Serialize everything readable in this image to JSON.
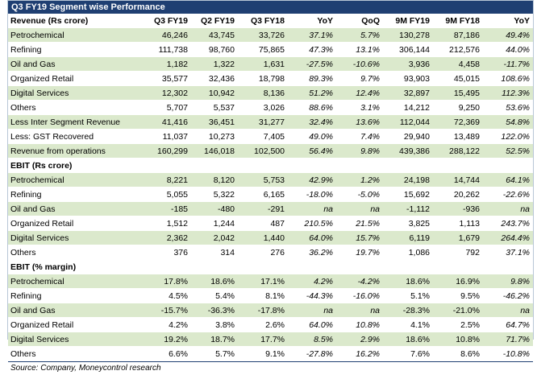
{
  "title": "Q3 FY19 Segment wise Performance",
  "columns": [
    "Q3 FY19",
    "Q2 FY19",
    "Q3 FY18",
    "YoY",
    "QoQ",
    "9M FY19",
    "9M FY18",
    "YoY"
  ],
  "sections": [
    {
      "heading": "Revenue (Rs crore)",
      "rows": [
        {
          "label": "Petrochemical",
          "values": [
            "46,246",
            "43,745",
            "33,726",
            "37.1%",
            "5.7%",
            "130,278",
            "87,186",
            "49.4%"
          ]
        },
        {
          "label": "Refining",
          "values": [
            "111,738",
            "98,760",
            "75,865",
            "47.3%",
            "13.1%",
            "306,144",
            "212,576",
            "44.0%"
          ]
        },
        {
          "label": "Oil and Gas",
          "values": [
            "1,182",
            "1,322",
            "1,631",
            "-27.5%",
            "-10.6%",
            "3,936",
            "4,458",
            "-11.7%"
          ]
        },
        {
          "label": "Organized Retail",
          "values": [
            "35,577",
            "32,436",
            "18,798",
            "89.3%",
            "9.7%",
            "93,903",
            "45,015",
            "108.6%"
          ]
        },
        {
          "label": "Digital Services",
          "values": [
            "12,302",
            "10,942",
            "8,136",
            "51.2%",
            "12.4%",
            "32,897",
            "15,495",
            "112.3%"
          ]
        },
        {
          "label": "Others",
          "values": [
            "5,707",
            "5,537",
            "3,026",
            "88.6%",
            "3.1%",
            "14,212",
            "9,250",
            "53.6%"
          ]
        },
        {
          "label": "Less  Inter Segment Revenue",
          "values": [
            "41,416",
            "36,451",
            "31,277",
            "32.4%",
            "13.6%",
            "112,044",
            "72,369",
            "54.8%"
          ]
        },
        {
          "label": "Less: GST Recovered",
          "values": [
            "11,037",
            "10,273",
            "7,405",
            "49.0%",
            "7.4%",
            "29,940",
            "13,489",
            "122.0%"
          ]
        },
        {
          "label": "Revenue from operations",
          "values": [
            "160,299",
            "146,018",
            "102,500",
            "56.4%",
            "9.8%",
            "439,386",
            "288,122",
            "52.5%"
          ]
        }
      ]
    },
    {
      "heading": "EBIT (Rs crore)",
      "rows": [
        {
          "label": "Petrochemical",
          "values": [
            "8,221",
            "8,120",
            "5,753",
            "42.9%",
            "1.2%",
            "24,198",
            "14,744",
            "64.1%"
          ]
        },
        {
          "label": "Refining",
          "values": [
            "5,055",
            "5,322",
            "6,165",
            "-18.0%",
            "-5.0%",
            "15,692",
            "20,262",
            "-22.6%"
          ]
        },
        {
          "label": "Oil and Gas",
          "values": [
            "-185",
            "-480",
            "-291",
            "na",
            "na",
            "-1,112",
            "-936",
            "na"
          ]
        },
        {
          "label": "Organized Retail",
          "values": [
            "1,512",
            "1,244",
            "487",
            "210.5%",
            "21.5%",
            "3,825",
            "1,113",
            "243.7%"
          ]
        },
        {
          "label": "Digital Services",
          "values": [
            "2,362",
            "2,042",
            "1,440",
            "64.0%",
            "15.7%",
            "6,119",
            "1,679",
            "264.4%"
          ]
        },
        {
          "label": "Others",
          "values": [
            "376",
            "314",
            "276",
            "36.2%",
            "19.7%",
            "1,086",
            "792",
            "37.1%"
          ]
        }
      ]
    },
    {
      "heading": "EBIT (% margin)",
      "rows": [
        {
          "label": "Petrochemical",
          "values": [
            "17.8%",
            "18.6%",
            "17.1%",
            "4.2%",
            "-4.2%",
            "18.6%",
            "16.9%",
            "9.8%"
          ]
        },
        {
          "label": "Refining",
          "values": [
            "4.5%",
            "5.4%",
            "8.1%",
            "-44.3%",
            "-16.0%",
            "5.1%",
            "9.5%",
            "-46.2%"
          ]
        },
        {
          "label": "Oil and Gas",
          "values": [
            "-15.7%",
            "-36.3%",
            "-17.8%",
            "na",
            "na",
            "-28.3%",
            "-21.0%",
            "na"
          ]
        },
        {
          "label": "Organized Retail",
          "values": [
            "4.2%",
            "3.8%",
            "2.6%",
            "64.0%",
            "10.8%",
            "4.1%",
            "2.5%",
            "64.7%"
          ]
        },
        {
          "label": "Digital Services",
          "values": [
            "19.2%",
            "18.7%",
            "17.7%",
            "8.5%",
            "2.9%",
            "18.6%",
            "10.8%",
            "71.7%"
          ]
        },
        {
          "label": "Others",
          "values": [
            "6.6%",
            "5.7%",
            "9.1%",
            "-27.8%",
            "16.2%",
            "7.6%",
            "8.6%",
            "-10.8%"
          ]
        }
      ]
    }
  ],
  "source": "Source: Company, Moneycontrol research",
  "colors": {
    "banner": "#1f3f72",
    "shade": "#dbe9cc"
  }
}
